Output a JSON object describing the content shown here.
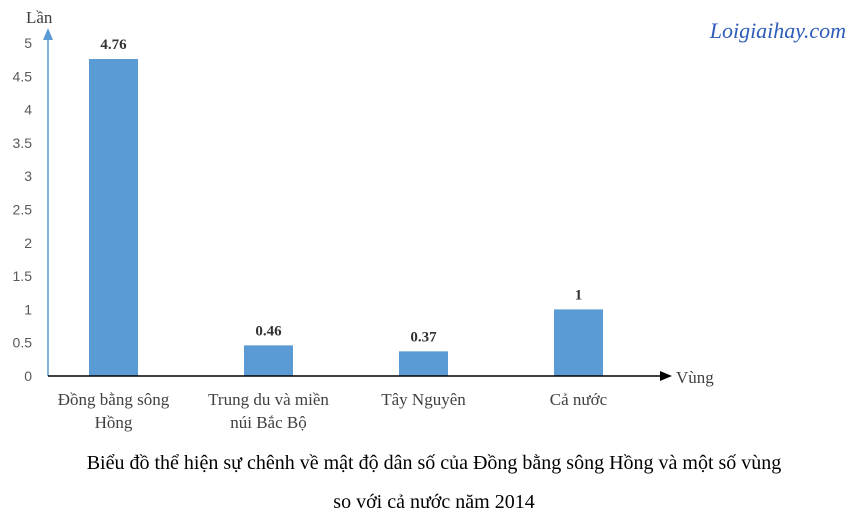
{
  "watermark": "Loigiaihay.com",
  "caption": {
    "line1": "Biểu đồ thể hiện sự chênh về mật độ dân số của Đồng bằng sông Hồng và một số vùng",
    "line2": "so với cả nước năm 2014"
  },
  "chart_data": {
    "type": "bar",
    "ylabel": "Lần",
    "xlabel": "Vùng",
    "ylim": [
      0,
      5
    ],
    "yticks": [
      "0",
      "0.5",
      "1",
      "1.5",
      "2",
      "2.5",
      "3",
      "3.5",
      "4",
      "4.5",
      "5"
    ],
    "grid": false,
    "categories": [
      [
        "Đồng bằng sông",
        "Hồng"
      ],
      [
        "Trung du và miền",
        "núi Bắc Bộ"
      ],
      [
        "Tây Nguyên"
      ],
      [
        "Cả nước"
      ]
    ],
    "values": [
      4.76,
      0.46,
      0.37,
      1
    ],
    "value_labels": [
      "4.76",
      "0.46",
      "0.37",
      "1"
    ],
    "bar_color": "#5b9bd5",
    "axis_color": "#5b9bd5"
  }
}
